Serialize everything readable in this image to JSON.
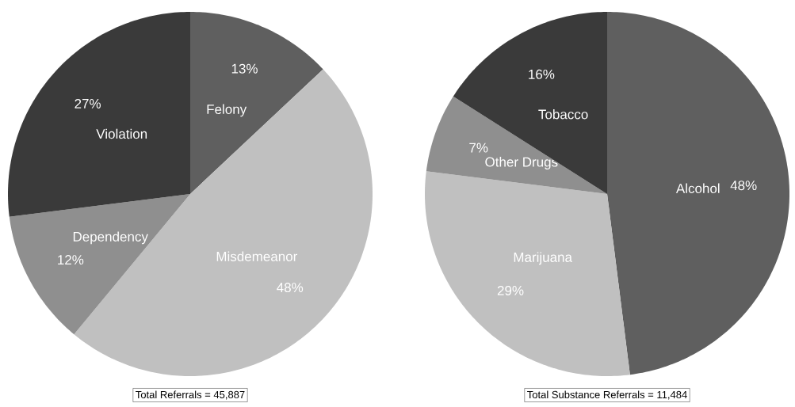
{
  "chart_data": [
    {
      "type": "pie",
      "categories": [
        "Felony",
        "Misdemeanor",
        "Dependency",
        "Violation"
      ],
      "values": [
        13,
        48,
        12,
        27
      ],
      "colors": [
        "#5f5f5f",
        "#c0c0c0",
        "#8f8f8f",
        "#3a3a3a"
      ],
      "value_labels": [
        "13%",
        "48%",
        "12%",
        "27%"
      ],
      "annotations": [
        "Total Referrals = 45,887"
      ]
    },
    {
      "type": "pie",
      "categories": [
        "Alcohol",
        "Marijuana",
        "Other Drugs",
        "Tobacco"
      ],
      "values": [
        48,
        29,
        7,
        16
      ],
      "colors": [
        "#5f5f5f",
        "#c0c0c0",
        "#8f8f8f",
        "#3a3a3a"
      ],
      "value_labels": [
        "48%",
        "29%",
        "7%",
        "16%"
      ],
      "annotations": [
        "Total Substance Referrals = 11,484"
      ]
    }
  ]
}
